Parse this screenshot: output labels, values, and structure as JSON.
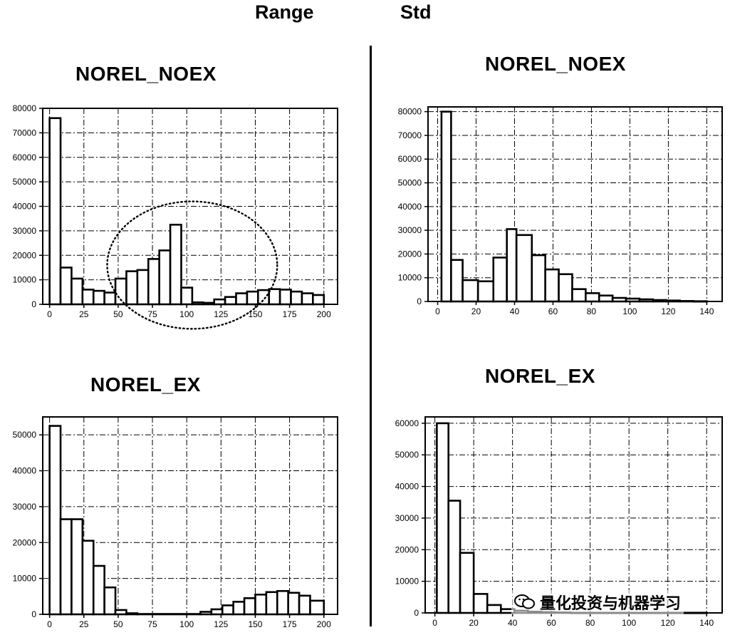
{
  "header": {
    "range_label": "Range",
    "std_label": "Std"
  },
  "watermark": {
    "text": "量化投资与机器学习",
    "icon": "wechat-icon"
  },
  "chart_data": [
    {
      "type": "bar",
      "id": "range-noex",
      "title": "NOREL_NOEX",
      "xlim": [
        -5,
        210
      ],
      "ylim": [
        0,
        80000
      ],
      "xticks": [
        0,
        25,
        50,
        75,
        100,
        125,
        150,
        175,
        200
      ],
      "yticks": [
        0,
        10000,
        20000,
        30000,
        40000,
        50000,
        60000,
        70000,
        80000
      ],
      "grid": true,
      "bins": [
        {
          "x0": 0,
          "x1": 8,
          "y": 76000
        },
        {
          "x0": 8,
          "x1": 16,
          "y": 15000
        },
        {
          "x0": 16,
          "x1": 24,
          "y": 10500
        },
        {
          "x0": 24,
          "x1": 32,
          "y": 6000
        },
        {
          "x0": 32,
          "x1": 40,
          "y": 5500
        },
        {
          "x0": 40,
          "x1": 48,
          "y": 4800
        },
        {
          "x0": 48,
          "x1": 56,
          "y": 10500
        },
        {
          "x0": 56,
          "x1": 64,
          "y": 13500
        },
        {
          "x0": 64,
          "x1": 72,
          "y": 14000
        },
        {
          "x0": 72,
          "x1": 80,
          "y": 18500
        },
        {
          "x0": 80,
          "x1": 88,
          "y": 22000
        },
        {
          "x0": 88,
          "x1": 96,
          "y": 32500
        },
        {
          "x0": 96,
          "x1": 104,
          "y": 6800
        },
        {
          "x0": 104,
          "x1": 112,
          "y": 800
        },
        {
          "x0": 112,
          "x1": 120,
          "y": 600
        },
        {
          "x0": 120,
          "x1": 128,
          "y": 2000
        },
        {
          "x0": 128,
          "x1": 136,
          "y": 3000
        },
        {
          "x0": 136,
          "x1": 144,
          "y": 4500
        },
        {
          "x0": 144,
          "x1": 152,
          "y": 5200
        },
        {
          "x0": 152,
          "x1": 160,
          "y": 5800
        },
        {
          "x0": 160,
          "x1": 168,
          "y": 6200
        },
        {
          "x0": 168,
          "x1": 176,
          "y": 6000
        },
        {
          "x0": 176,
          "x1": 184,
          "y": 5200
        },
        {
          "x0": 184,
          "x1": 192,
          "y": 4500
        },
        {
          "x0": 192,
          "x1": 200,
          "y": 3800
        }
      ],
      "highlight": {
        "shape": "dotted-ellipse",
        "cx": 104,
        "cy": 16000,
        "rx": 62,
        "ry": 26000
      }
    },
    {
      "type": "bar",
      "id": "std-noex",
      "title": "NOREL_NOEX",
      "xlim": [
        -5,
        148
      ],
      "ylim": [
        0,
        82000
      ],
      "xticks": [
        0,
        20,
        40,
        60,
        80,
        100,
        120,
        140
      ],
      "yticks": [
        0,
        10000,
        20000,
        30000,
        40000,
        50000,
        60000,
        70000,
        80000
      ],
      "grid": true,
      "bins": [
        {
          "x0": 2,
          "x1": 7,
          "y": 80000
        },
        {
          "x0": 7,
          "x1": 13,
          "y": 17500
        },
        {
          "x0": 13,
          "x1": 21,
          "y": 9000
        },
        {
          "x0": 21,
          "x1": 29,
          "y": 8500
        },
        {
          "x0": 29,
          "x1": 36,
          "y": 18500
        },
        {
          "x0": 36,
          "x1": 41,
          "y": 30500
        },
        {
          "x0": 41,
          "x1": 49,
          "y": 28000
        },
        {
          "x0": 49,
          "x1": 56,
          "y": 19500
        },
        {
          "x0": 56,
          "x1": 63,
          "y": 13500
        },
        {
          "x0": 63,
          "x1": 70,
          "y": 11500
        },
        {
          "x0": 70,
          "x1": 77,
          "y": 5200
        },
        {
          "x0": 77,
          "x1": 84,
          "y": 3500
        },
        {
          "x0": 84,
          "x1": 91,
          "y": 2500
        },
        {
          "x0": 91,
          "x1": 98,
          "y": 1500
        },
        {
          "x0": 98,
          "x1": 105,
          "y": 1200
        },
        {
          "x0": 105,
          "x1": 112,
          "y": 900
        },
        {
          "x0": 112,
          "x1": 119,
          "y": 600
        },
        {
          "x0": 119,
          "x1": 126,
          "y": 400
        },
        {
          "x0": 126,
          "x1": 133,
          "y": 200
        },
        {
          "x0": 133,
          "x1": 140,
          "y": 100
        }
      ]
    },
    {
      "type": "bar",
      "id": "range-ex",
      "title": "NOREL_EX",
      "xlim": [
        -5,
        210
      ],
      "ylim": [
        0,
        55000
      ],
      "xticks": [
        0,
        25,
        50,
        75,
        100,
        125,
        150,
        175,
        200
      ],
      "yticks": [
        0,
        10000,
        20000,
        30000,
        40000,
        50000
      ],
      "grid": true,
      "bins": [
        {
          "x0": 0,
          "x1": 8,
          "y": 52500
        },
        {
          "x0": 8,
          "x1": 16,
          "y": 26500
        },
        {
          "x0": 16,
          "x1": 24,
          "y": 26500
        },
        {
          "x0": 24,
          "x1": 32,
          "y": 20500
        },
        {
          "x0": 32,
          "x1": 40,
          "y": 13500
        },
        {
          "x0": 40,
          "x1": 48,
          "y": 7500
        },
        {
          "x0": 48,
          "x1": 56,
          "y": 1200
        },
        {
          "x0": 56,
          "x1": 64,
          "y": 300
        },
        {
          "x0": 64,
          "x1": 110,
          "y": 100
        },
        {
          "x0": 110,
          "x1": 118,
          "y": 700
        },
        {
          "x0": 118,
          "x1": 126,
          "y": 1400
        },
        {
          "x0": 126,
          "x1": 134,
          "y": 2500
        },
        {
          "x0": 134,
          "x1": 142,
          "y": 3500
        },
        {
          "x0": 142,
          "x1": 150,
          "y": 4500
        },
        {
          "x0": 150,
          "x1": 158,
          "y": 5500
        },
        {
          "x0": 158,
          "x1": 166,
          "y": 6200
        },
        {
          "x0": 166,
          "x1": 174,
          "y": 6500
        },
        {
          "x0": 174,
          "x1": 182,
          "y": 6000
        },
        {
          "x0": 182,
          "x1": 190,
          "y": 5200
        },
        {
          "x0": 190,
          "x1": 200,
          "y": 3800
        }
      ]
    },
    {
      "type": "bar",
      "id": "std-ex",
      "title": "NOREL_EX",
      "xlim": [
        -5,
        148
      ],
      "ylim": [
        0,
        62000
      ],
      "xticks": [
        0,
        20,
        40,
        60,
        80,
        100,
        120,
        140
      ],
      "yticks": [
        0,
        10000,
        20000,
        30000,
        40000,
        50000,
        60000
      ],
      "grid": true,
      "bins": [
        {
          "x0": 1,
          "x1": 7,
          "y": 60000
        },
        {
          "x0": 7,
          "x1": 13,
          "y": 35500
        },
        {
          "x0": 13,
          "x1": 20,
          "y": 19000
        },
        {
          "x0": 20,
          "x1": 27,
          "y": 6000
        },
        {
          "x0": 27,
          "x1": 34,
          "y": 2500
        },
        {
          "x0": 34,
          "x1": 41,
          "y": 1200
        },
        {
          "x0": 41,
          "x1": 48,
          "y": 700
        },
        {
          "x0": 48,
          "x1": 55,
          "y": 400
        },
        {
          "x0": 55,
          "x1": 62,
          "y": 250
        },
        {
          "x0": 62,
          "x1": 70,
          "y": 150
        },
        {
          "x0": 70,
          "x1": 140,
          "y": 50
        }
      ]
    }
  ]
}
